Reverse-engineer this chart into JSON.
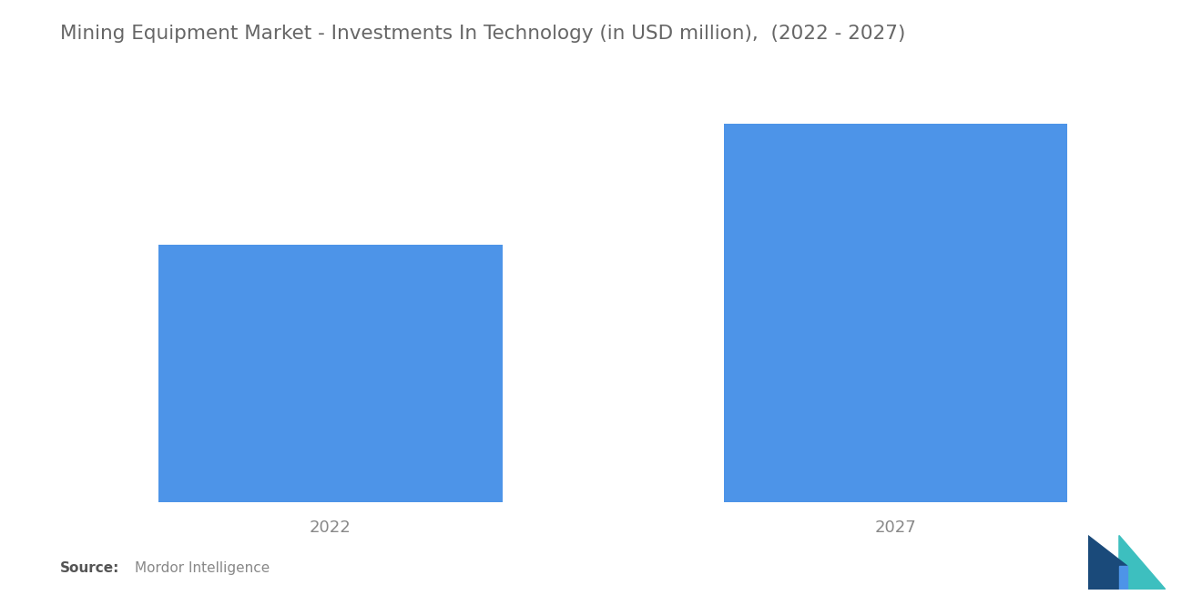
{
  "title": "Mining Equipment Market - Investments In Technology (in USD million),  (2022 - 2027)",
  "categories": [
    "2022",
    "2027"
  ],
  "values": [
    60,
    88
  ],
  "bar_color": "#4d94e8",
  "background_color": "#ffffff",
  "title_fontsize": 15.5,
  "tick_fontsize": 13,
  "source_bold": "Source:",
  "source_normal": "Mordor Intelligence",
  "ylim": [
    0,
    100
  ],
  "bar_width": 0.28,
  "x_positions": [
    0.27,
    0.73
  ],
  "xlim": [
    0.05,
    0.95
  ]
}
